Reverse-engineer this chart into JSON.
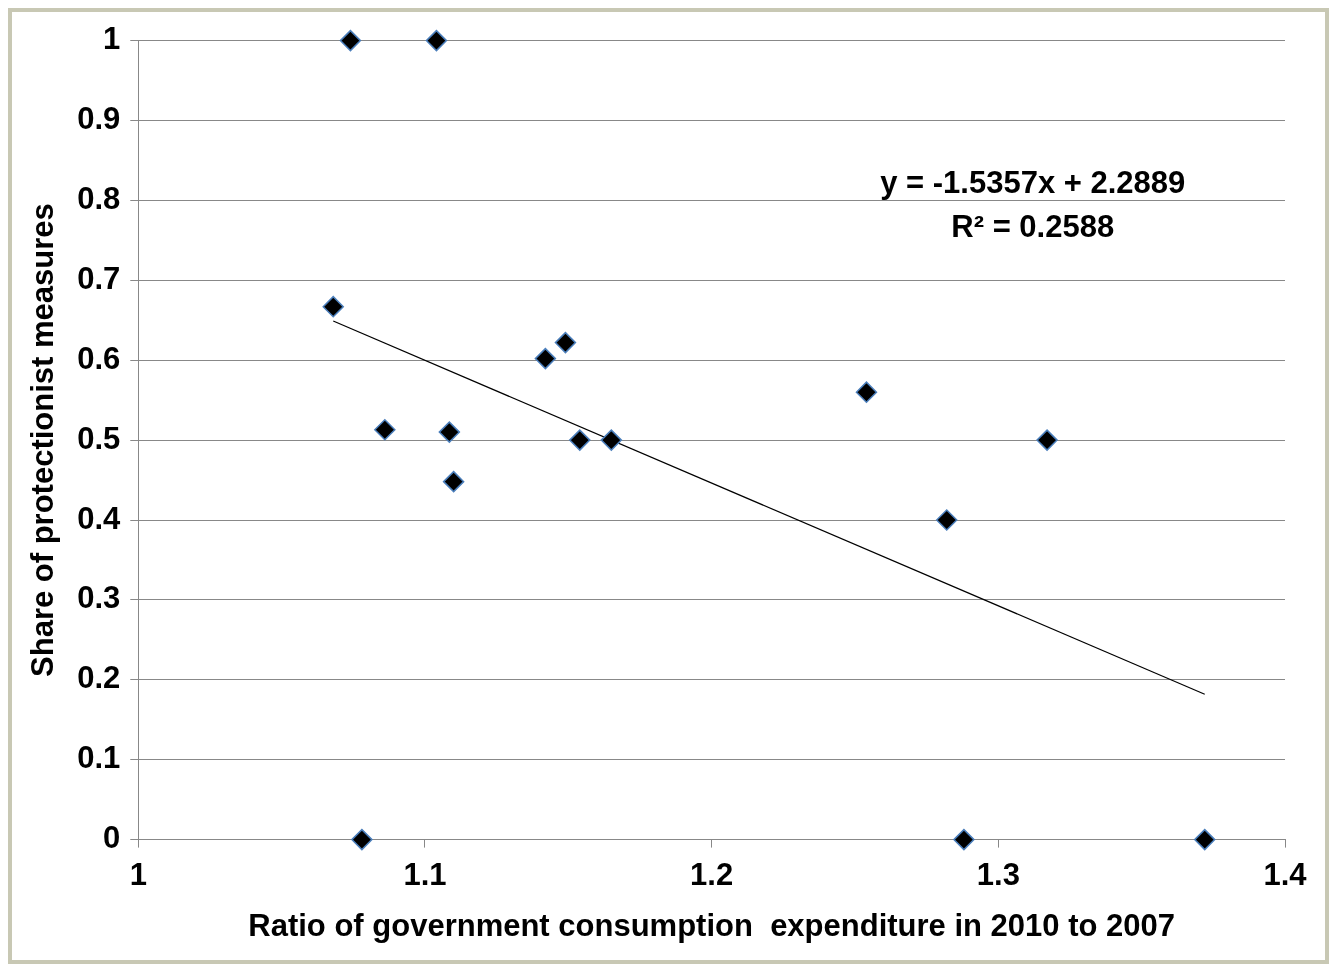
{
  "chart_data": {
    "type": "scatter",
    "xlabel": "Ratio of government consumption  expenditure in 2010 to 2007",
    "ylabel": "Share of protectionist measures",
    "xlim": [
      1,
      1.4
    ],
    "xticks": [
      1,
      1.1,
      1.2,
      1.3,
      1.4
    ],
    "ylim": [
      0,
      1
    ],
    "yticks": [
      0,
      0.1,
      0.2,
      0.3,
      0.4,
      0.5,
      0.6,
      0.7,
      0.8,
      0.9,
      1
    ],
    "grid": "y",
    "legend": false,
    "annotations": [
      "y = -1.5357x + 2.2889",
      "R² = 0.2588"
    ],
    "series": [
      {
        "color": "#000000",
        "marker": "diamond",
        "x": [
          1.074,
          1.104,
          1.068,
          1.086,
          1.1085,
          1.11,
          1.142,
          1.149,
          1.154,
          1.165,
          1.254,
          1.282,
          1.317,
          1.078,
          1.288,
          1.372
        ],
        "values": [
          1,
          1,
          0.667,
          0.513,
          0.51,
          0.448,
          0.602,
          0.622,
          0.5,
          0.5,
          0.56,
          0.4,
          0.5,
          0,
          0,
          0
        ]
      },
      {
        "type": "line",
        "color": "#000000",
        "marker": "none",
        "x": [
          1.068,
          1.372
        ],
        "values": [
          0.649,
          0.182
        ]
      }
    ]
  }
}
